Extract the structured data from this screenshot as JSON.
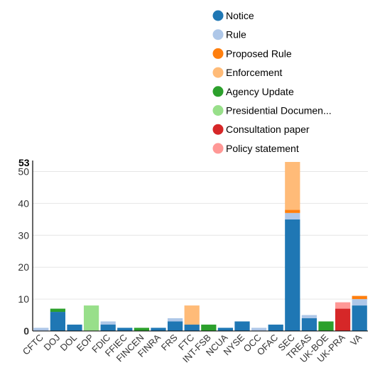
{
  "chart_data": {
    "type": "bar",
    "stacked": true,
    "max_label": "53",
    "ylim": [
      0,
      53
    ],
    "yticks": [
      0,
      10,
      20,
      30,
      40,
      50
    ],
    "grid": true,
    "legend_position": "top-right",
    "categories": [
      "CFTC",
      "DOJ",
      "DOL",
      "EOP",
      "FDIC",
      "FFIEC",
      "FINCEN",
      "FINRA",
      "FRS",
      "FTC",
      "INT-FSB",
      "NCUA",
      "NYSE",
      "OCC",
      "OFAC",
      "SEC",
      "TREAS",
      "UK-BOE",
      "UK-PRA",
      "VA"
    ],
    "series": [
      {
        "name": "Notice",
        "color": "#1f77b4",
        "values": [
          0,
          6,
          2,
          0,
          2,
          1,
          0,
          1,
          3,
          2,
          0,
          1,
          3,
          0,
          2,
          35,
          4,
          0,
          0,
          8
        ]
      },
      {
        "name": "Rule",
        "color": "#aec7e8",
        "values": [
          1,
          0,
          0,
          0,
          1,
          0,
          0,
          0,
          1,
          0,
          0,
          0,
          0,
          1,
          0,
          2,
          1,
          0,
          0,
          2
        ]
      },
      {
        "name": "Proposed Rule",
        "color": "#ff7f0e",
        "values": [
          0,
          0,
          0,
          0,
          0,
          0,
          0,
          0,
          0,
          0,
          0,
          0,
          0,
          0,
          0,
          1,
          0,
          0,
          0,
          1
        ]
      },
      {
        "name": "Enforcement",
        "color": "#ffbb78",
        "values": [
          0,
          0,
          0,
          0,
          0,
          0,
          0,
          0,
          0,
          6,
          0,
          0,
          0,
          0,
          0,
          15,
          0,
          0,
          0,
          0
        ]
      },
      {
        "name": "Agency Update",
        "color": "#2ca02c",
        "values": [
          0,
          1,
          0,
          0,
          0,
          0,
          1,
          0,
          0,
          0,
          2,
          0,
          0,
          0,
          0,
          0,
          0,
          3,
          0,
          0
        ]
      },
      {
        "name": "Presidential Documen...",
        "color": "#98df8a",
        "values": [
          0,
          0,
          0,
          8,
          0,
          0,
          0,
          0,
          0,
          0,
          0,
          0,
          0,
          0,
          0,
          0,
          0,
          0,
          0,
          0
        ]
      },
      {
        "name": "Consultation paper",
        "color": "#d62728",
        "values": [
          0,
          0,
          0,
          0,
          0,
          0,
          0,
          0,
          0,
          0,
          0,
          0,
          0,
          0,
          0,
          0,
          0,
          0,
          7,
          0
        ]
      },
      {
        "name": "Policy statement",
        "color": "#ff9896",
        "values": [
          0,
          0,
          0,
          0,
          0,
          0,
          0,
          0,
          0,
          0,
          0,
          0,
          0,
          0,
          0,
          0,
          0,
          0,
          2,
          0
        ]
      }
    ]
  }
}
